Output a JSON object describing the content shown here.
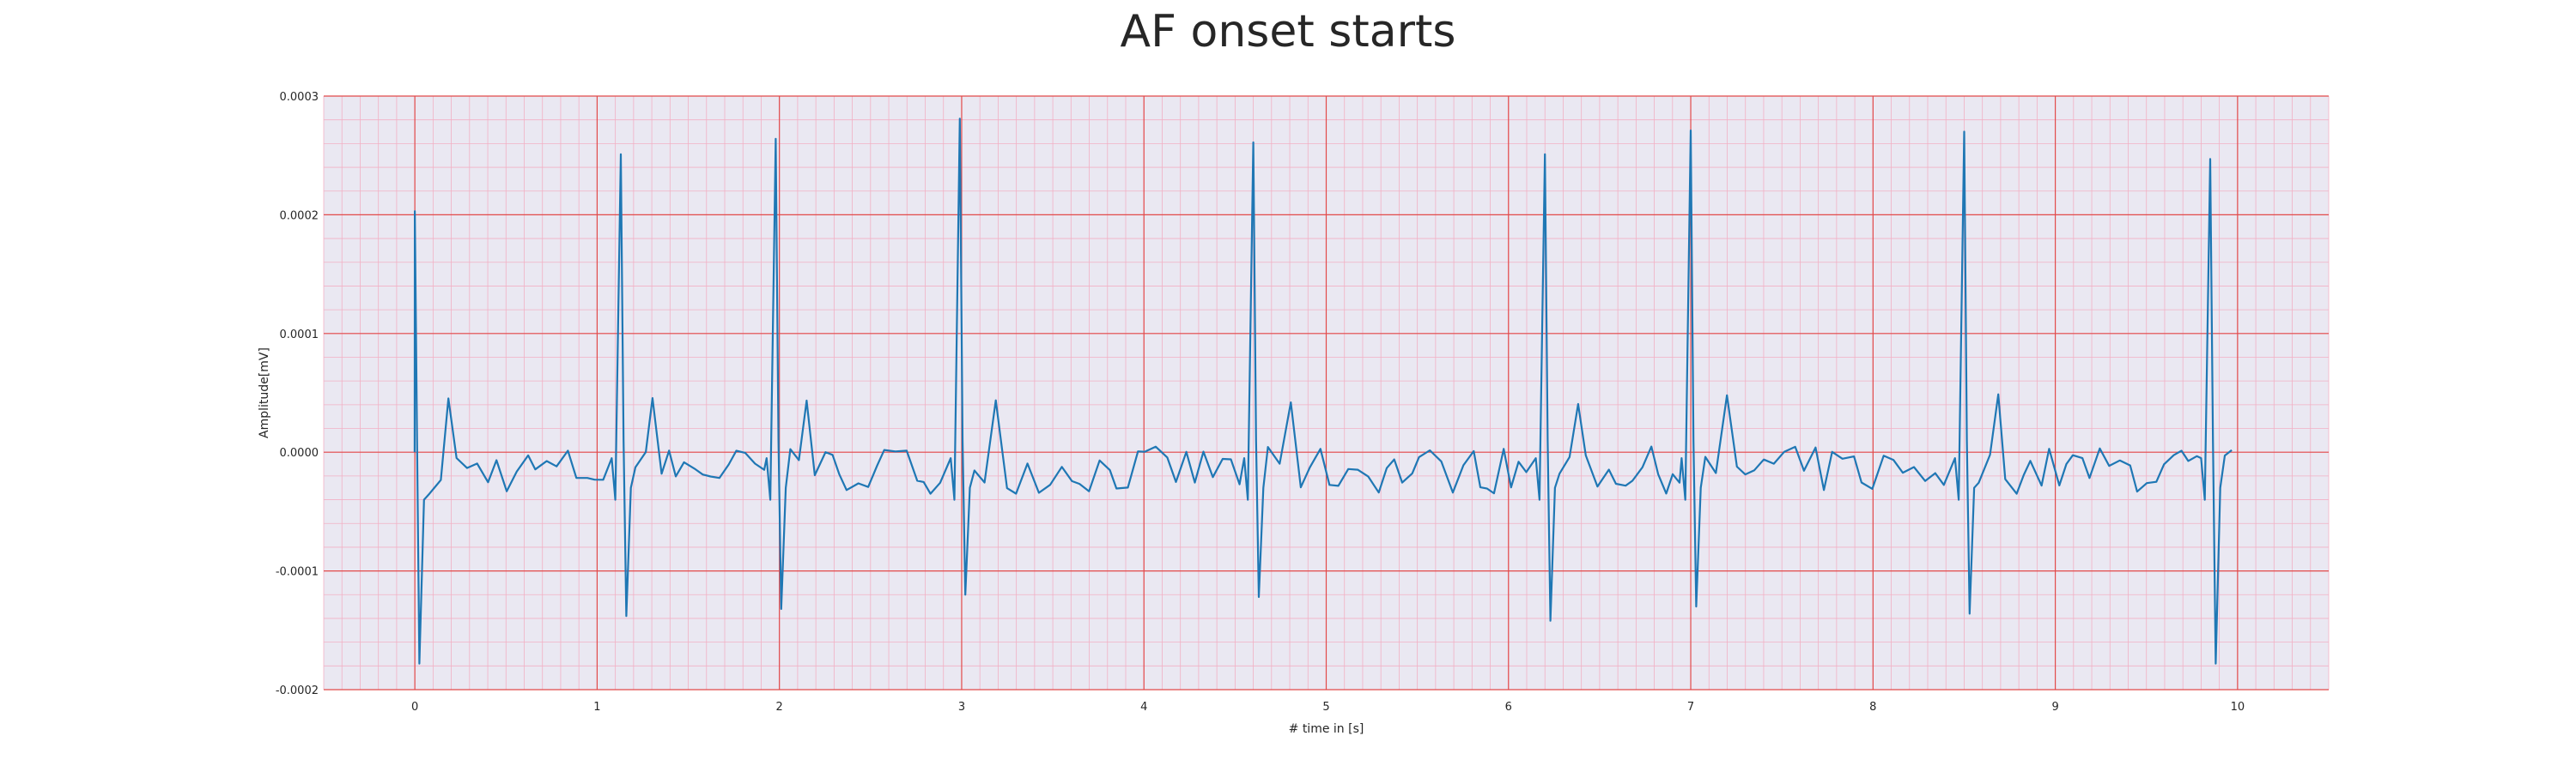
{
  "chart_data": {
    "type": "line",
    "title": "AF onset starts",
    "xlabel": "# time in [s]",
    "ylabel": "Amplitude[mV]",
    "xlim": [
      -0.5,
      10.5
    ],
    "ylim": [
      -0.0002,
      0.0003
    ],
    "xticks": [
      0,
      1,
      2,
      3,
      4,
      5,
      6,
      7,
      8,
      9,
      10
    ],
    "xtick_labels": [
      "0",
      "1",
      "2",
      "3",
      "4",
      "5",
      "6",
      "7",
      "8",
      "9",
      "10"
    ],
    "yticks": [
      -0.0002,
      -0.0001,
      0.0,
      0.0001,
      0.0002,
      0.0003
    ],
    "ytick_labels": [
      "-0.0002",
      "-0.0001",
      "0.0000",
      "0.0001",
      "0.0002",
      "0.0003"
    ],
    "grid": true,
    "minor_grid": true,
    "legend": "none",
    "colors": {
      "line": "#1f77b4",
      "plot_background": "#eae8f2",
      "major_grid": "#e24a4a",
      "minor_grid": "#f2b0c4",
      "text": "#262626"
    },
    "series": [
      {
        "r_peaks": [
          {
            "t": 0.0,
            "amp": 0.000203,
            "s": -0.000178
          },
          {
            "t": 1.13,
            "amp": 0.000251,
            "s": -0.000138
          },
          {
            "t": 1.98,
            "amp": 0.000264,
            "s": -0.000132
          },
          {
            "t": 2.99,
            "amp": 0.000281,
            "s": -0.00012
          },
          {
            "t": 4.6,
            "amp": 0.000261,
            "s": -0.000122
          },
          {
            "t": 6.2,
            "amp": 0.000251,
            "s": -0.000142
          },
          {
            "t": 7.0,
            "amp": 0.000271,
            "s": -0.00013
          },
          {
            "t": 8.5,
            "amp": 0.00027,
            "s": -0.000136
          },
          {
            "t": 9.85,
            "amp": 0.000247,
            "s": -0.000178
          }
        ],
        "t_end": 10.0,
        "baseline": -1.5e-05
      }
    ]
  }
}
